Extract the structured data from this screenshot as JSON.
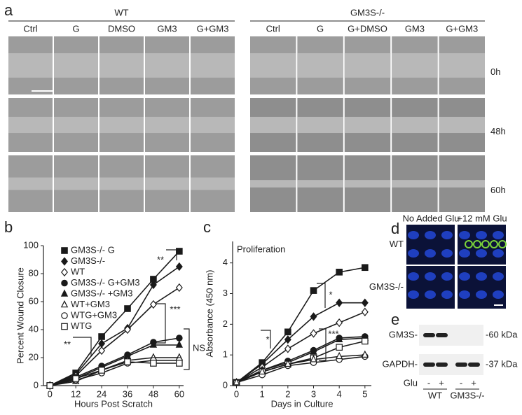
{
  "panels": {
    "a": {
      "letter": "a",
      "groups": [
        {
          "label": "WT",
          "columns": [
            "Ctrl",
            "G",
            "DMSO",
            "GM3",
            "G+GM3"
          ]
        },
        {
          "label": "GM3S-/-",
          "columns": [
            "Ctrl",
            "G",
            "G+DMSO",
            "GM3",
            "G+GM3"
          ]
        }
      ],
      "rows": [
        "0h",
        "48h",
        "60h"
      ]
    },
    "d": {
      "letter": "d",
      "columns": [
        "No Added Glu",
        "+12 mM Glu"
      ],
      "rows": [
        "WT",
        "GM3S-/-"
      ]
    },
    "e": {
      "letter": "e",
      "bands": [
        {
          "left": "GM3S-",
          "right": "-60 kDa"
        },
        {
          "left": "GAPDH-",
          "right": "-37 kDa"
        }
      ],
      "treatment": "Glu",
      "signs": [
        "-",
        "+",
        "-",
        "+"
      ],
      "groups": [
        "WT",
        "GM3S-/-"
      ]
    }
  },
  "chart_data": [
    {
      "type": "line",
      "panel_label": "b",
      "xlabel": "Hours Post Scratch",
      "ylabel": "Percent Wound Closure",
      "x": [
        0,
        12,
        24,
        36,
        48,
        60
      ],
      "xlim": [
        -3,
        62
      ],
      "xticks": [
        0,
        12,
        24,
        36,
        48,
        60
      ],
      "ylim": [
        0,
        100
      ],
      "yticks": [
        0,
        20,
        40,
        60,
        80,
        100
      ],
      "legend": "upper left",
      "annotations": [
        "**",
        "***",
        "**",
        "NS"
      ],
      "series": [
        {
          "name": "GM3S-/- G",
          "marker": "square-filled",
          "color": "#1a1a1a",
          "values": [
            0,
            9,
            35,
            55,
            76,
            96
          ]
        },
        {
          "name": "GM3S-/-",
          "marker": "diamond-filled",
          "color": "#1a1a1a",
          "values": [
            0,
            8,
            30,
            41,
            72,
            85
          ]
        },
        {
          "name": "WT",
          "marker": "diamond-open",
          "color": "#1a1a1a",
          "values": [
            0,
            7,
            25,
            40,
            58,
            70
          ]
        },
        {
          "name": "GM3S-/- G+GM3",
          "marker": "circle-filled",
          "color": "#1a1a1a",
          "values": [
            0,
            6,
            14,
            22,
            31,
            34
          ]
        },
        {
          "name": "GM3S-/- +GM3",
          "marker": "triangle-filled",
          "color": "#1a1a1a",
          "values": [
            0,
            5,
            13,
            21,
            29,
            29
          ]
        },
        {
          "name": "WT+GM3",
          "marker": "triangle-open",
          "color": "#1a1a1a",
          "values": [
            0,
            3,
            11,
            18,
            20,
            20
          ]
        },
        {
          "name": "WTG+GM3",
          "marker": "circle-open",
          "color": "#1a1a1a",
          "values": [
            0,
            4,
            9,
            16,
            18,
            18
          ]
        },
        {
          "name": "WTG",
          "marker": "square-open",
          "color": "#1a1a1a",
          "values": [
            0,
            5,
            11,
            17,
            16,
            16
          ]
        }
      ]
    },
    {
      "type": "line",
      "panel_label": "c",
      "title": "Proliferation",
      "xlabel": "Days in Culture",
      "ylabel": "Absorbance (450 nm)",
      "x": [
        0,
        1,
        2,
        3,
        4,
        5
      ],
      "xlim": [
        -0.15,
        5.25
      ],
      "xticks": [
        0,
        1,
        2,
        3,
        4,
        5
      ],
      "ylim": [
        0,
        4.7
      ],
      "yticks": [
        0,
        1,
        2,
        3,
        4
      ],
      "annotations": [
        "*",
        "*",
        "***"
      ],
      "series": [
        {
          "marker": "square-filled",
          "color": "#1a1a1a",
          "values": [
            0.1,
            0.75,
            1.75,
            3.1,
            3.7,
            3.85
          ]
        },
        {
          "marker": "diamond-filled",
          "color": "#1a1a1a",
          "values": [
            0.1,
            0.7,
            1.5,
            2.25,
            2.7,
            2.7
          ]
        },
        {
          "marker": "diamond-open",
          "color": "#1a1a1a",
          "values": [
            0.1,
            0.6,
            1.2,
            1.7,
            2.05,
            2.4
          ]
        },
        {
          "marker": "circle-filled",
          "color": "#1a1a1a",
          "values": [
            0.1,
            0.5,
            0.8,
            1.15,
            1.55,
            1.6
          ]
        },
        {
          "marker": "triangle-filled",
          "color": "#1a1a1a",
          "values": [
            0.1,
            0.5,
            0.75,
            1.1,
            1.5,
            1.55
          ]
        },
        {
          "marker": "square-open",
          "color": "#1a1a1a",
          "values": [
            0.1,
            0.45,
            0.7,
            0.9,
            1.25,
            1.45
          ]
        },
        {
          "marker": "circle-open",
          "color": "#1a1a1a",
          "values": [
            0.1,
            0.35,
            0.65,
            0.75,
            0.85,
            0.95
          ]
        },
        {
          "marker": "triangle-open",
          "color": "#1a1a1a",
          "values": [
            0.1,
            0.45,
            0.7,
            0.85,
            0.95,
            1.0
          ]
        }
      ]
    }
  ]
}
